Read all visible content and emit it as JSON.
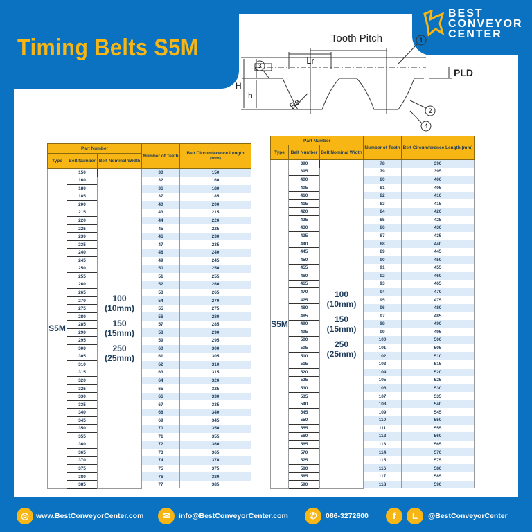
{
  "title": "Timing Belts S5M",
  "logo": {
    "line1": "BEST",
    "line2": "CONVEYOR",
    "line3": "CENTER"
  },
  "diagram": {
    "tooth_pitch": "Tooth Pitch",
    "lr": "Lr",
    "pld": "PLD",
    "h_big": "H",
    "h_small": "h",
    "ra": "Ra",
    "callouts": [
      "1",
      "2",
      "3",
      "4"
    ]
  },
  "table_headers": {
    "part_number": "Part Number",
    "type": "Type",
    "belt_number": "Belt Number",
    "nominal_width": "Belt Nominal Width",
    "teeth": "Number of Teeth",
    "length": "Belt Circumference Length (mm)"
  },
  "type": "S5M",
  "widths": [
    "100",
    "(10mm)",
    "150",
    "(15mm)",
    "250",
    "(25mm)"
  ],
  "left_table": {
    "belt_numbers": [
      "150",
      "160",
      "180",
      "185",
      "200",
      "215",
      "220",
      "225",
      "230",
      "235",
      "240",
      "245",
      "250",
      "255",
      "260",
      "265",
      "270",
      "275",
      "280",
      "285",
      "290",
      "295",
      "300",
      "305",
      "310",
      "315",
      "320",
      "325",
      "330",
      "335",
      "340",
      "345",
      "350",
      "355",
      "360",
      "365",
      "370",
      "375",
      "380",
      "385"
    ],
    "teeth": [
      "30",
      "32",
      "36",
      "37",
      "40",
      "43",
      "44",
      "45",
      "46",
      "47",
      "48",
      "49",
      "50",
      "51",
      "52",
      "53",
      "54",
      "55",
      "56",
      "57",
      "58",
      "59",
      "60",
      "61",
      "62",
      "63",
      "64",
      "65",
      "66",
      "67",
      "68",
      "69",
      "70",
      "71",
      "72",
      "73",
      "74",
      "75",
      "76",
      "77"
    ]
  },
  "right_table": {
    "belt_numbers": [
      "390",
      "395",
      "400",
      "405",
      "410",
      "415",
      "420",
      "425",
      "430",
      "435",
      "440",
      "445",
      "450",
      "455",
      "460",
      "465",
      "470",
      "475",
      "480",
      "485",
      "490",
      "495",
      "500",
      "505",
      "510",
      "515",
      "520",
      "525",
      "530",
      "535",
      "540",
      "545",
      "550",
      "555",
      "560",
      "565",
      "570",
      "575",
      "580",
      "585",
      "590"
    ],
    "teeth": [
      "78",
      "79",
      "80",
      "81",
      "82",
      "83",
      "84",
      "85",
      "86",
      "87",
      "88",
      "89",
      "90",
      "91",
      "92",
      "93",
      "94",
      "95",
      "96",
      "97",
      "98",
      "99",
      "100",
      "101",
      "102",
      "103",
      "104",
      "105",
      "106",
      "107",
      "108",
      "109",
      "110",
      "111",
      "112",
      "113",
      "114",
      "115",
      "116",
      "117",
      "118"
    ]
  },
  "footer": {
    "website": "www.BestConveyorCenter.com",
    "email": "info@BestConveyorCenter.com",
    "phone": "086-3272600",
    "social": "@BestConveyorCenter",
    "icons": [
      "globe-icon",
      "mail-icon",
      "phone-icon",
      "facebook-icon",
      "line-icon"
    ]
  },
  "colors": {
    "brand_blue": "#0a72c0",
    "accent_yellow": "#f7b614",
    "stripe": "#dcebf7"
  }
}
